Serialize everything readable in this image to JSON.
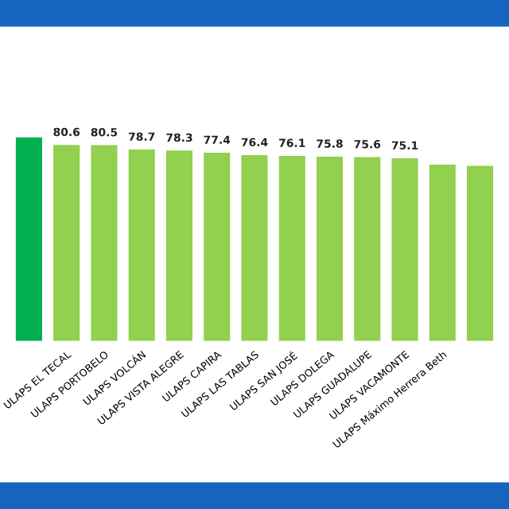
{
  "chart_data": {
    "type": "bar",
    "categories": [
      null,
      "ULAPS EL TECAL",
      "ULAPS PORTOBELO",
      "ULAPS VOLCÁN",
      "ULAPS VISTA ALEGRE",
      "ULAPS CAPIRA",
      "ULAPS LAS TABLAS",
      "ULAPS SAN JOSÉ",
      "ULAPS DOLEGA",
      "ULAPS GUADALUPE",
      "ULAPS VACAMONTE",
      "ULAPS Máximo Herrera Beth",
      null
    ],
    "values": [
      83.7,
      80.6,
      80.5,
      78.7,
      78.3,
      77.4,
      76.4,
      76.1,
      75.8,
      75.6,
      75.1,
      72.5,
      72.0
    ],
    "colors": [
      "#00b050",
      "#92d050",
      "#92d050",
      "#92d050",
      "#92d050",
      "#92d050",
      "#92d050",
      "#92d050",
      "#92d050",
      "#92d050",
      "#92d050",
      "#92d050",
      "#92d050"
    ],
    "value_labels": [
      null,
      "80.6",
      "80.5",
      "78.7",
      "78.3",
      "77.4",
      "76.4",
      "76.1",
      "75.8",
      "75.6",
      "75.1",
      null,
      null
    ],
    "grid": false,
    "legend": false
  }
}
